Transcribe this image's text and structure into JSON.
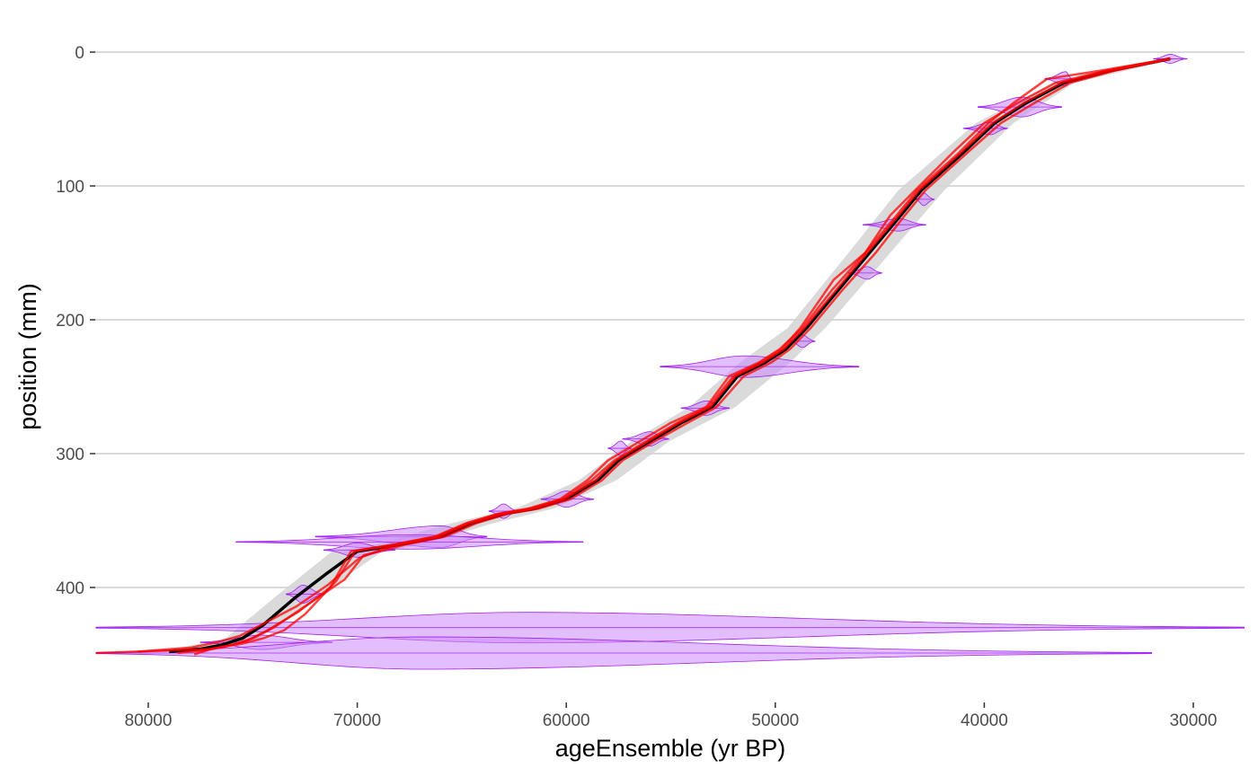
{
  "chart_data": {
    "type": "line",
    "title": "",
    "xlabel": "ageEnsemble (yr BP)",
    "ylabel": "position (mm)",
    "x_reversed": true,
    "y_reversed": true,
    "xlim": [
      82500,
      27500
    ],
    "ylim": [
      0,
      460
    ],
    "x_ticks": [
      80000,
      70000,
      60000,
      50000,
      40000,
      30000
    ],
    "x_tick_labels": [
      "80000",
      "70000",
      "60000",
      "50000",
      "40000",
      "30000"
    ],
    "y_ticks": [
      0,
      100,
      200,
      300,
      400
    ],
    "y_tick_labels": [
      "0",
      "100",
      "200",
      "300",
      "400"
    ],
    "grid": "horizontal major",
    "legend": "none",
    "colors": {
      "median": "#000000",
      "ensemble": "#ff0000",
      "ribbon": "#d3d3d3",
      "violin_fill": "#cc88ff",
      "violin_stroke": "#a020f0",
      "grid": "#d9d9d9"
    },
    "median_line": {
      "x": [
        31100,
        34000,
        36200,
        38000,
        39500,
        41000,
        43000,
        44000,
        45500,
        47000,
        48500,
        49500,
        50500,
        51800,
        53000,
        54500,
        56000,
        57500,
        58500,
        60000,
        61500,
        63000,
        64500,
        66000,
        68000,
        70000,
        71500,
        73000,
        74500,
        75500,
        76500,
        77500,
        79000
      ],
      "y": [
        5,
        14,
        23,
        38,
        53,
        75,
        103,
        122,
        150,
        178,
        206,
        222,
        232,
        242,
        265,
        277,
        291,
        305,
        320,
        334,
        341,
        345,
        352,
        362,
        368,
        373,
        390,
        408,
        428,
        438,
        443,
        446,
        448
      ]
    },
    "uncertainty_ribbon": {
      "x_center": [
        31100,
        36200,
        39500,
        43000,
        45500,
        48500,
        50500,
        53000,
        56000,
        58500,
        61500,
        64500,
        68000,
        70000,
        73000,
        75500,
        79000
      ],
      "half_width": [
        300,
        500,
        900,
        1100,
        1000,
        900,
        1200,
        1100,
        900,
        900,
        900,
        1000,
        1100,
        1200,
        1000,
        800,
        400
      ],
      "y": [
        5,
        23,
        53,
        103,
        150,
        206,
        232,
        265,
        291,
        320,
        341,
        352,
        368,
        373,
        408,
        438,
        448
      ]
    },
    "ensemble_members": [
      {
        "x": [
          31100,
          34200,
          36600,
          38400,
          40000,
          41500,
          43300,
          44500,
          45700,
          47300,
          48700,
          49800,
          50800,
          52200,
          53300,
          55000,
          56500,
          58000,
          59000,
          60300,
          61800,
          63300,
          64800,
          66300,
          68300,
          70300,
          71300,
          72800,
          74300,
          75300,
          76300,
          77300,
          78600
        ],
        "y": [
          5,
          14,
          23,
          38,
          53,
          75,
          103,
          122,
          150,
          178,
          206,
          222,
          232,
          242,
          265,
          277,
          291,
          305,
          320,
          334,
          341,
          345,
          352,
          362,
          368,
          373,
          400,
          418,
          432,
          440,
          444,
          447,
          449
        ]
      },
      {
        "x": [
          31100,
          33800,
          35900,
          37600,
          39200,
          40800,
          42800,
          43800,
          45200,
          46800,
          48300,
          49300,
          50200,
          51500,
          52800,
          54200,
          55800,
          57300,
          58300,
          59800,
          61300,
          62800,
          64300,
          65800,
          67700,
          69700,
          70600,
          72300,
          74000,
          75000,
          76000,
          77000,
          77800
        ],
        "y": [
          5,
          14,
          23,
          38,
          53,
          75,
          103,
          122,
          150,
          178,
          206,
          222,
          232,
          242,
          265,
          277,
          291,
          305,
          320,
          334,
          341,
          345,
          352,
          362,
          368,
          376,
          394,
          412,
          430,
          438,
          443,
          446,
          450
        ]
      },
      {
        "x": [
          31100,
          34500,
          37000,
          38600,
          39800,
          41200,
          43200,
          44200,
          45700,
          47200,
          48800,
          49700,
          50700,
          52000,
          53200,
          54700,
          56200,
          57700,
          58800,
          60200,
          61700,
          63200,
          64700,
          66200,
          68200,
          69900,
          71400,
          72900,
          74600,
          75600,
          76700,
          78000,
          80500
        ],
        "y": [
          5,
          14,
          20,
          38,
          53,
          75,
          103,
          122,
          150,
          170,
          206,
          222,
          232,
          242,
          265,
          277,
          291,
          305,
          320,
          334,
          341,
          345,
          352,
          362,
          368,
          378,
          398,
          414,
          428,
          436,
          441,
          445,
          448
        ]
      },
      {
        "x": [
          31100,
          34100,
          36300,
          38100,
          39600,
          41100,
          43100,
          44100,
          45600,
          47100,
          48600,
          49600,
          50600,
          51900,
          53100,
          54600,
          56100,
          57600,
          58600,
          60100,
          61600,
          63100,
          64600,
          66100,
          68100,
          70100,
          71000,
          72500,
          73500,
          74500,
          75500,
          77000,
          82500
        ],
        "y": [
          5,
          14,
          23,
          38,
          53,
          75,
          103,
          122,
          150,
          178,
          206,
          222,
          232,
          242,
          265,
          277,
          291,
          305,
          320,
          334,
          341,
          345,
          352,
          362,
          368,
          373,
          395,
          420,
          432,
          438,
          442,
          446,
          449
        ]
      }
    ],
    "age_distributions": [
      {
        "position": 5,
        "mode": 31100,
        "min": 30300,
        "max": 31900,
        "width": 5
      },
      {
        "position": 20,
        "mode": 36100,
        "min": 35800,
        "max": 37100,
        "width": 8
      },
      {
        "position": 41,
        "mode": 38200,
        "min": 36300,
        "max": 40300,
        "width": 11
      },
      {
        "position": 57,
        "mode": 39700,
        "min": 38900,
        "max": 41000,
        "width": 7
      },
      {
        "position": 110,
        "mode": 42900,
        "min": 42400,
        "max": 43300,
        "width": 7
      },
      {
        "position": 129,
        "mode": 44100,
        "min": 42800,
        "max": 45800,
        "width": 7
      },
      {
        "position": 165,
        "mode": 45600,
        "min": 44900,
        "max": 46500,
        "width": 7
      },
      {
        "position": 216,
        "mode": 48700,
        "min": 48100,
        "max": 49300,
        "width": 7
      },
      {
        "position": 235,
        "mode": 51500,
        "min": 46000,
        "max": 55500,
        "width": 12
      },
      {
        "position": 266,
        "mode": 53300,
        "min": 52200,
        "max": 54500,
        "width": 8
      },
      {
        "position": 289,
        "mode": 56000,
        "min": 55100,
        "max": 57300,
        "width": 8
      },
      {
        "position": 296,
        "mode": 57400,
        "min": 56900,
        "max": 58000,
        "width": 8
      },
      {
        "position": 334,
        "mode": 60000,
        "min": 58700,
        "max": 61200,
        "width": 9
      },
      {
        "position": 343,
        "mode": 63000,
        "min": 62300,
        "max": 63700,
        "width": 8
      },
      {
        "position": 362,
        "mode": 66000,
        "min": 63800,
        "max": 72000,
        "width": 12
      },
      {
        "position": 366,
        "mode": 67500,
        "min": 59200,
        "max": 75800,
        "width": 8
      },
      {
        "position": 372,
        "mode": 70000,
        "min": 68200,
        "max": 71600,
        "width": 8
      },
      {
        "position": 405,
        "mode": 72600,
        "min": 71600,
        "max": 73400,
        "width": 10
      },
      {
        "position": 430,
        "mode": 62000,
        "min": 27500,
        "max": 82500,
        "width": 17
      },
      {
        "position": 441,
        "mode": 74600,
        "min": 71200,
        "max": 77500,
        "width": 8
      },
      {
        "position": 449,
        "mode": 67000,
        "min": 32000,
        "max": 82500,
        "width": 18
      }
    ]
  }
}
